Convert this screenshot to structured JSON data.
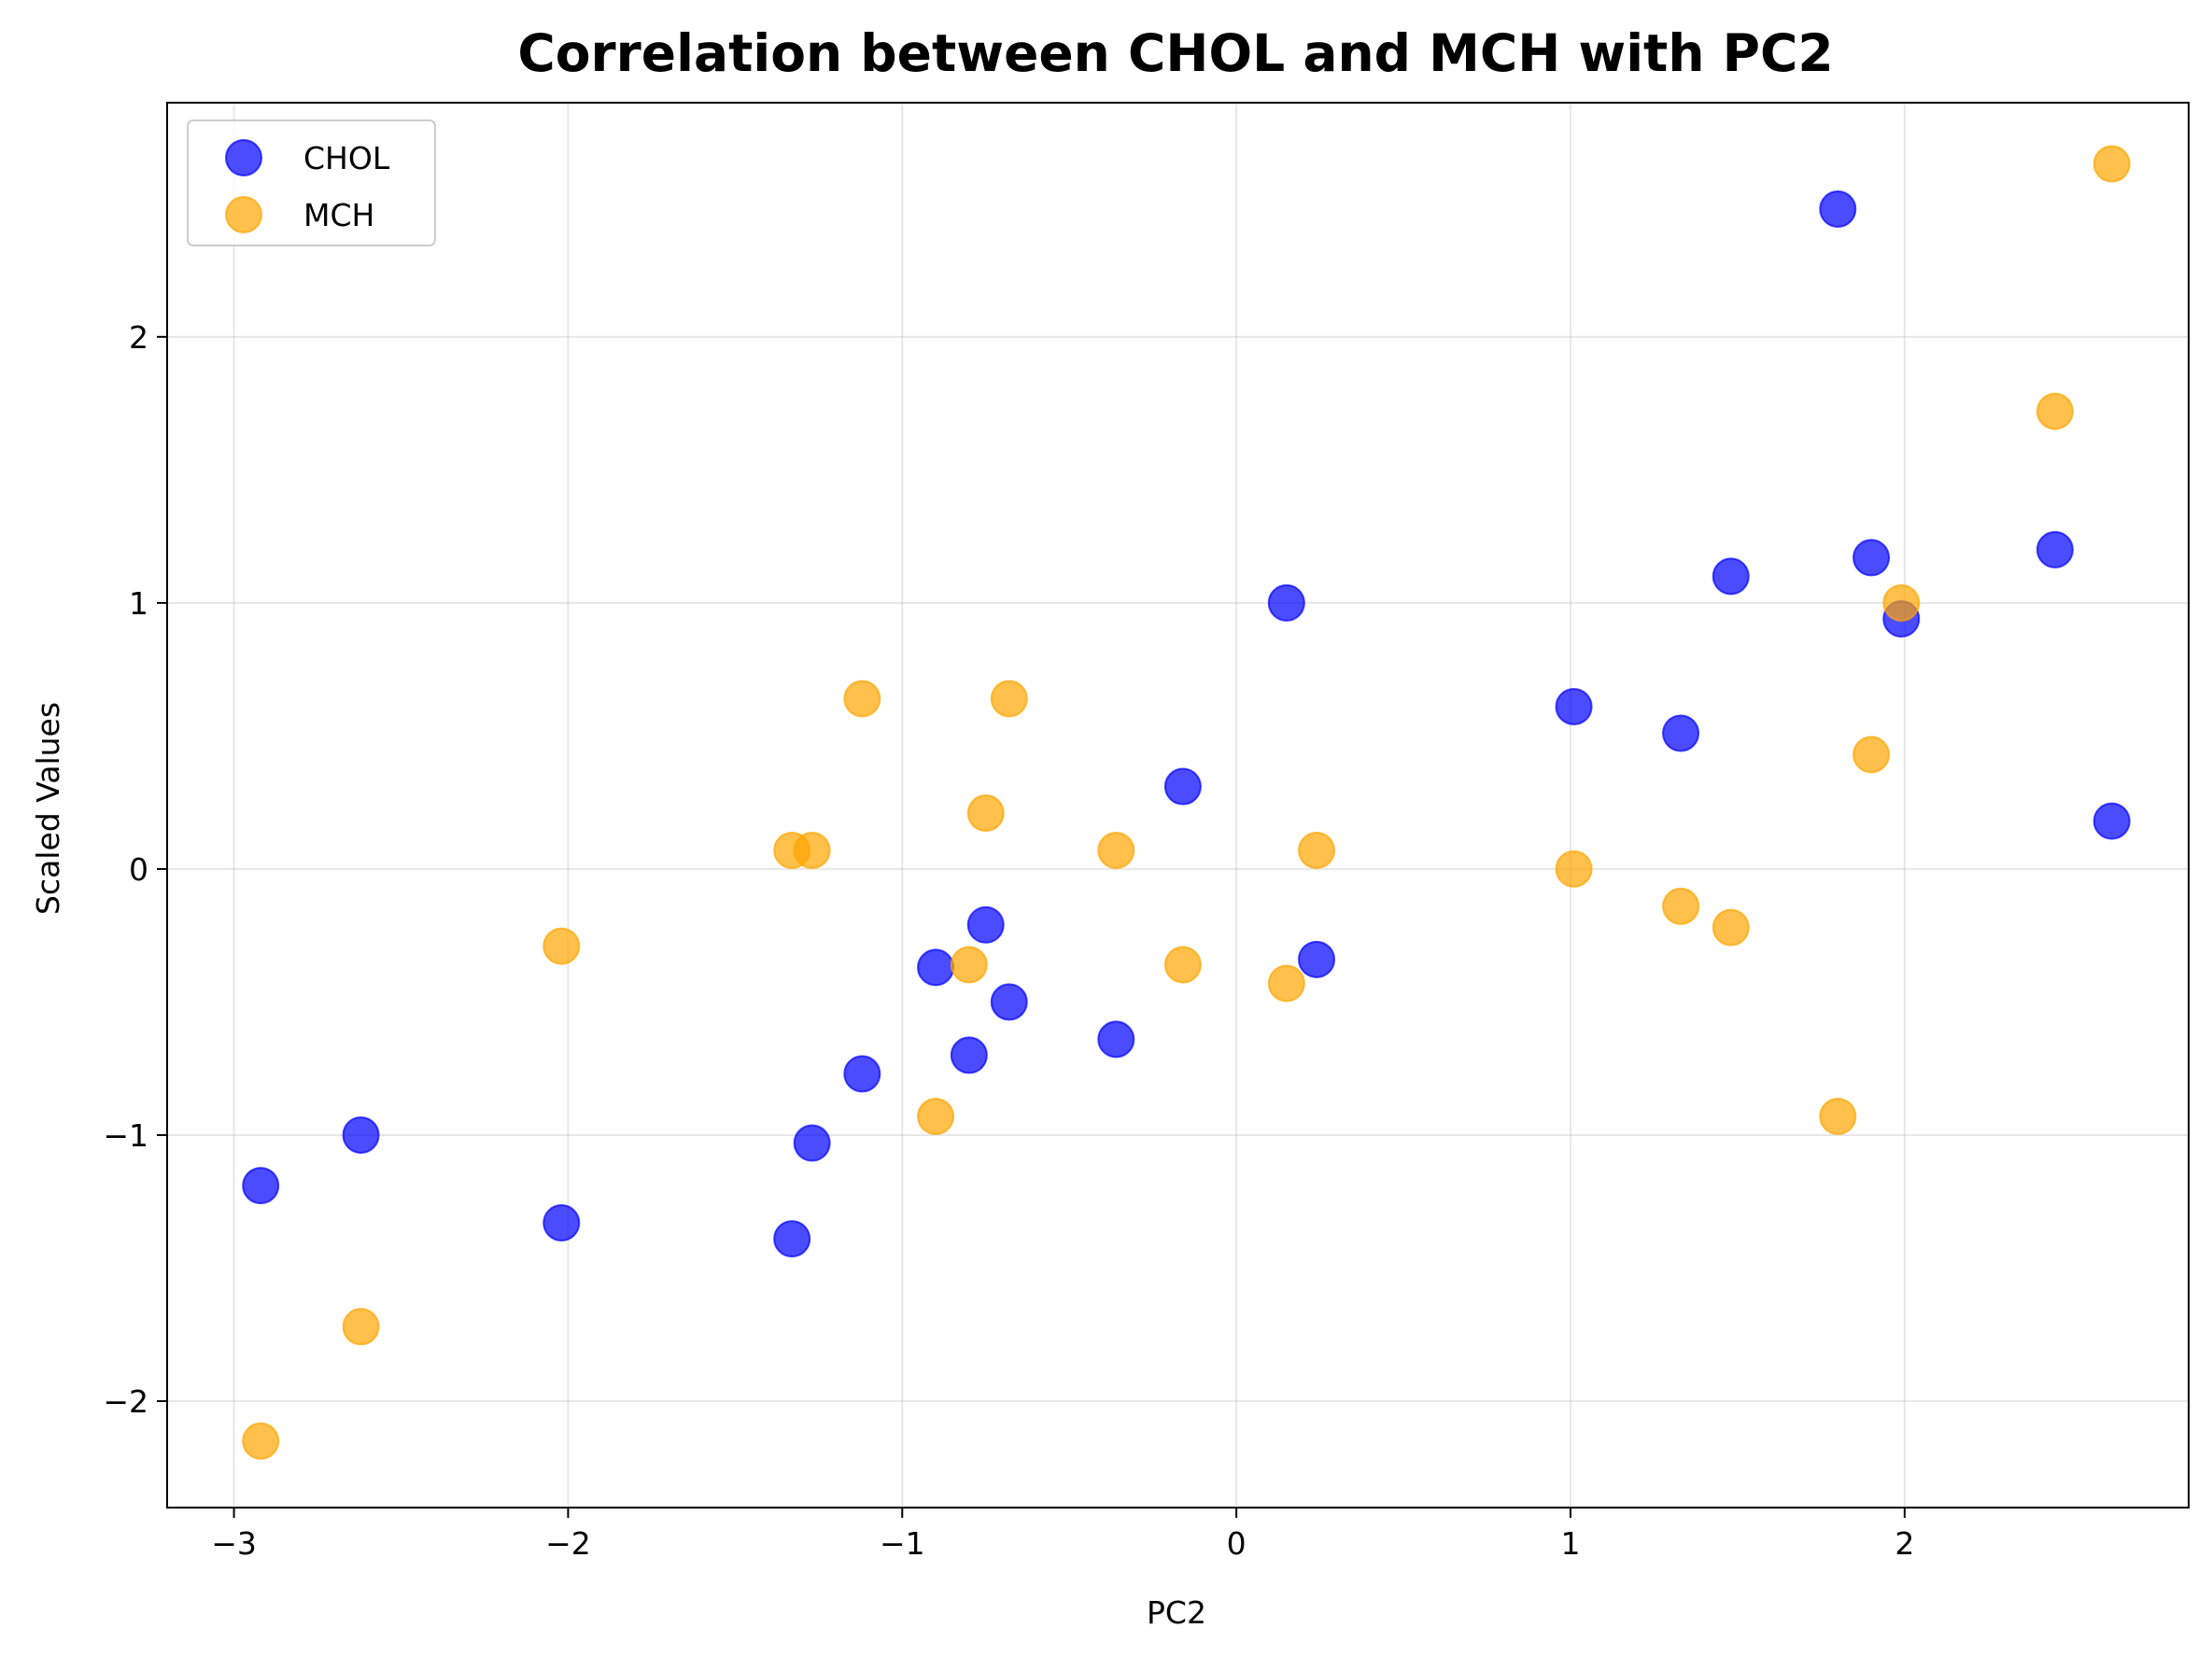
{
  "chart_data": {
    "type": "scatter",
    "title": "Correlation between CHOL and MCH with PC2",
    "xlabel": "PC2",
    "ylabel": "Scaled Values",
    "xlim": [
      -3.2,
      2.85
    ],
    "ylim": [
      -2.4,
      2.88
    ],
    "xticks": [
      {
        "value": -3,
        "label": "−3"
      },
      {
        "value": -2,
        "label": "−2"
      },
      {
        "value": -1,
        "label": "−1"
      },
      {
        "value": 0,
        "label": "0"
      },
      {
        "value": 1,
        "label": "1"
      },
      {
        "value": 2,
        "label": "2"
      }
    ],
    "yticks": [
      {
        "value": -2,
        "label": "−2"
      },
      {
        "value": -1,
        "label": "−1"
      },
      {
        "value": 0,
        "label": "0"
      },
      {
        "value": 1,
        "label": "1"
      },
      {
        "value": 2,
        "label": "2"
      }
    ],
    "grid": true,
    "legend_position": "top-left",
    "series": [
      {
        "name": "CHOL",
        "color": "#0000ff",
        "alpha": 0.7,
        "points": [
          {
            "x": -2.92,
            "y": -1.19
          },
          {
            "x": -2.62,
            "y": -1.0
          },
          {
            "x": -2.02,
            "y": -1.33
          },
          {
            "x": -1.33,
            "y": -1.39
          },
          {
            "x": -1.27,
            "y": -1.03
          },
          {
            "x": -1.12,
            "y": -0.77
          },
          {
            "x": -0.9,
            "y": -0.37
          },
          {
            "x": -0.8,
            "y": -0.7
          },
          {
            "x": -0.75,
            "y": -0.21
          },
          {
            "x": -0.68,
            "y": -0.5
          },
          {
            "x": -0.36,
            "y": -0.64
          },
          {
            "x": -0.16,
            "y": 0.31
          },
          {
            "x": 0.15,
            "y": 1.0
          },
          {
            "x": 0.24,
            "y": -0.34
          },
          {
            "x": 1.01,
            "y": 0.61
          },
          {
            "x": 1.33,
            "y": 0.51
          },
          {
            "x": 1.48,
            "y": 1.1
          },
          {
            "x": 1.8,
            "y": 2.48
          },
          {
            "x": 1.9,
            "y": 1.17
          },
          {
            "x": 1.99,
            "y": 0.94
          },
          {
            "x": 2.45,
            "y": 1.2
          },
          {
            "x": 2.62,
            "y": 0.18
          }
        ]
      },
      {
        "name": "MCH",
        "color": "#ffa500",
        "alpha": 0.7,
        "points": [
          {
            "x": -2.92,
            "y": -2.15
          },
          {
            "x": -2.62,
            "y": -1.72
          },
          {
            "x": -2.02,
            "y": -0.29
          },
          {
            "x": -1.33,
            "y": 0.07
          },
          {
            "x": -1.27,
            "y": 0.07
          },
          {
            "x": -1.12,
            "y": 0.64
          },
          {
            "x": -0.9,
            "y": -0.93
          },
          {
            "x": -0.8,
            "y": -0.36
          },
          {
            "x": -0.75,
            "y": 0.21
          },
          {
            "x": -0.68,
            "y": 0.64
          },
          {
            "x": -0.36,
            "y": 0.07
          },
          {
            "x": -0.16,
            "y": -0.36
          },
          {
            "x": 0.15,
            "y": -0.43
          },
          {
            "x": 0.24,
            "y": 0.07
          },
          {
            "x": 1.01,
            "y": 0.0
          },
          {
            "x": 1.33,
            "y": -0.14
          },
          {
            "x": 1.48,
            "y": -0.22
          },
          {
            "x": 1.8,
            "y": -0.93
          },
          {
            "x": 1.9,
            "y": 0.43
          },
          {
            "x": 1.99,
            "y": 1.0
          },
          {
            "x": 2.45,
            "y": 1.72
          },
          {
            "x": 2.62,
            "y": 2.65
          }
        ]
      }
    ]
  }
}
